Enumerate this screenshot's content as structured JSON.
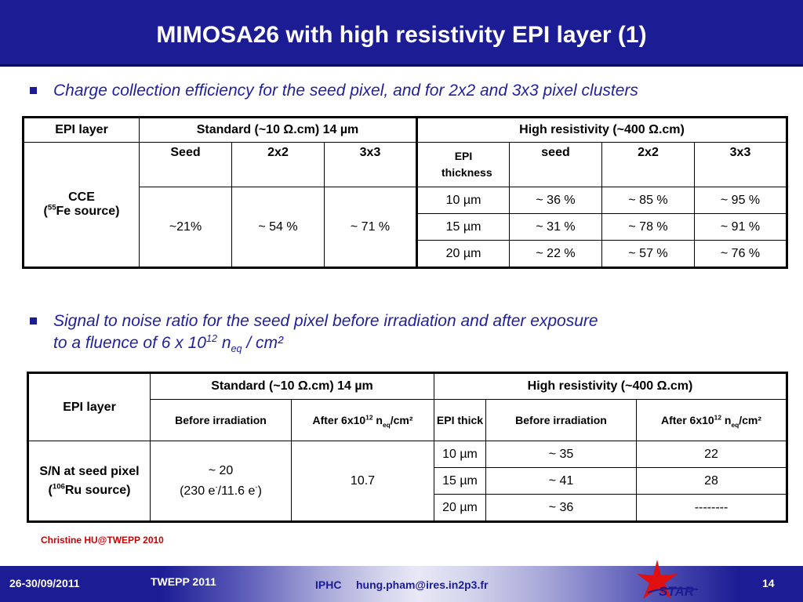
{
  "title": "MIMOSA26 with high resistivity EPI layer (1)",
  "bullet1": "Charge collection efficiency for the seed pixel, and for 2x2 and 3x3 pixel clusters",
  "bullet2": {
    "line1": "Signal to noise ratio for the seed pixel before irradiation and after exposure",
    "line2_pre": "to a fluence of 6 x 10",
    "line2_sup": "12",
    "line2_n": " n",
    "line2_sub": "eq",
    "line2_post": " / cm²"
  },
  "table1": {
    "epi_layer": "EPI layer",
    "standard": "Standard (~10 Ω.cm) 14 µm",
    "high_res": "High resistivity (~400 Ω.cm)",
    "cce": "CCE",
    "cce_src_open": "(",
    "cce_src_sup": "55",
    "cce_src_rest": "Fe source)",
    "std_cols": [
      "Seed",
      "2x2",
      "3x3"
    ],
    "std_vals": [
      "~21%",
      "~ 54 %",
      "~ 71 %"
    ],
    "epi_thickness": "EPI thickness",
    "hr_cols": [
      "seed",
      "2x2",
      "3x3"
    ],
    "rows": [
      {
        "thick": "10 µm",
        "vals": [
          "~ 36 %",
          "~ 85 %",
          "~ 95 %"
        ]
      },
      {
        "thick": "15 µm",
        "vals": [
          "~ 31 %",
          "~ 78 %",
          "~ 91 %"
        ]
      },
      {
        "thick": "20 µm",
        "vals": [
          "~ 22 %",
          "~ 57 %",
          "~ 76 %"
        ]
      }
    ]
  },
  "table2": {
    "epi_layer": "EPI layer",
    "standard": "Standard (~10 Ω.cm) 14 µm",
    "high_res": "High resistivity (~400 Ω.cm)",
    "before": "Before irradiation",
    "after_pre": "After 6x10",
    "after_sup": "12",
    "after_n": " n",
    "after_sub": "eq",
    "after_post": "/cm²",
    "epi_thick": "EPI thick",
    "sn_line1": "S/N at seed pixel",
    "sn_src_open": "(",
    "sn_src_sup": "106",
    "sn_src_rest": "Ru source)",
    "std_before_1": "~ 20",
    "std_before_2_pre": "(230 e",
    "std_before_2_sup1": "-",
    "std_before_2_mid": "/11.6 e",
    "std_before_2_sup2": "-",
    "std_before_2_post": ")",
    "std_after": "10.7",
    "rows": [
      {
        "thick": "10 µm",
        "before": "~ 35",
        "after": "22"
      },
      {
        "thick": "15 µm",
        "before": "~ 41",
        "after": "28"
      },
      {
        "thick": "20 µm",
        "before": "~ 36",
        "after": "--------"
      }
    ]
  },
  "credit": "Christine HU@TWEPP 2010",
  "footer": {
    "date": "26-30/09/2011",
    "conference": "TWEPP 2011",
    "lab": "IPHC",
    "email": "hung.pham@ires.in2p3.fr",
    "page": "14",
    "logo_text": "STAR"
  },
  "colors": {
    "title_bg": "#1c1c95",
    "bullet_text": "#1f1fa0",
    "credit": "#cc0000",
    "star_red": "#e01010"
  }
}
